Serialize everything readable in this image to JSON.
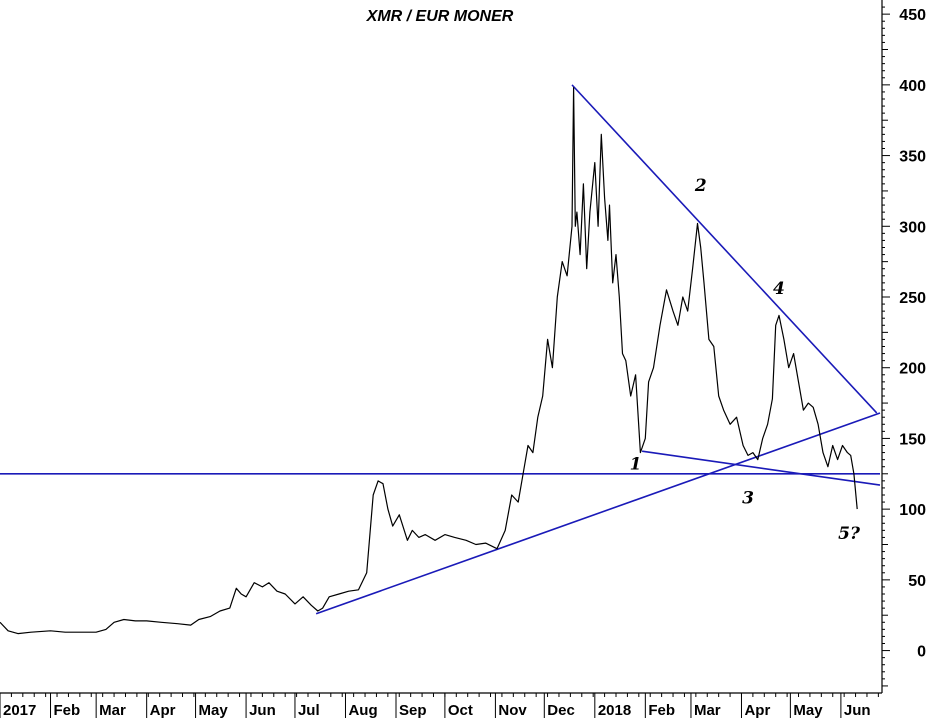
{
  "chart_data": {
    "type": "line",
    "title": "XMR / EUR MONER",
    "xlabel": "",
    "ylabel": "",
    "ylim": [
      -30,
      460
    ],
    "xlim": [
      "2017-01-01",
      "2018-06-25"
    ],
    "y_axis_position": "right",
    "y_ticks": [
      0,
      50,
      100,
      150,
      200,
      250,
      300,
      350,
      400,
      450
    ],
    "y_tick_labels": [
      "0",
      "50",
      "100",
      "150",
      "200",
      "250",
      "300",
      "350",
      "400",
      "450"
    ],
    "x_tick_labels": [
      "2017",
      "Feb",
      "Mar",
      "Apr",
      "May",
      "Jun",
      "Jul",
      "Aug",
      "Sep",
      "Oct",
      "Nov",
      "Dec",
      "2018",
      "Feb",
      "Mar",
      "Apr",
      "May",
      "Jun"
    ],
    "x_tick_dates": [
      "2017-01-01",
      "2017-02-01",
      "2017-03-01",
      "2017-04-01",
      "2017-05-01",
      "2017-06-01",
      "2017-07-01",
      "2017-08-01",
      "2017-09-01",
      "2017-10-01",
      "2017-11-01",
      "2017-12-01",
      "2018-01-01",
      "2018-02-01",
      "2018-03-01",
      "2018-04-01",
      "2018-05-01",
      "2018-06-01"
    ],
    "grid": false,
    "series": [
      {
        "color": "#000000",
        "x": [
          "2017-01-01",
          "2017-01-06",
          "2017-01-12",
          "2017-01-20",
          "2017-02-01",
          "2017-02-10",
          "2017-02-20",
          "2017-03-01",
          "2017-03-07",
          "2017-03-12",
          "2017-03-18",
          "2017-03-25",
          "2017-04-01",
          "2017-04-10",
          "2017-04-20",
          "2017-04-28",
          "2017-05-03",
          "2017-05-10",
          "2017-05-16",
          "2017-05-22",
          "2017-05-26",
          "2017-05-29",
          "2017-06-01",
          "2017-06-06",
          "2017-06-11",
          "2017-06-15",
          "2017-06-20",
          "2017-06-25",
          "2017-07-01",
          "2017-07-06",
          "2017-07-11",
          "2017-07-15",
          "2017-07-18",
          "2017-07-22",
          "2017-07-28",
          "2017-08-03",
          "2017-08-09",
          "2017-08-14",
          "2017-08-18",
          "2017-08-21",
          "2017-08-24",
          "2017-08-27",
          "2017-08-30",
          "2017-09-03",
          "2017-09-08",
          "2017-09-11",
          "2017-09-15",
          "2017-09-19",
          "2017-09-25",
          "2017-10-01",
          "2017-10-07",
          "2017-10-14",
          "2017-10-20",
          "2017-10-26",
          "2017-11-02",
          "2017-11-07",
          "2017-11-11",
          "2017-11-15",
          "2017-11-18",
          "2017-11-21",
          "2017-11-24",
          "2017-11-27",
          "2017-11-30",
          "2017-12-03",
          "2017-12-06",
          "2017-12-09",
          "2017-12-12",
          "2017-12-15",
          "2017-12-18",
          "2017-12-19",
          "2017-12-20",
          "2017-12-21",
          "2017-12-23",
          "2017-12-25",
          "2017-12-27",
          "2017-12-29",
          "2018-01-01",
          "2018-01-03",
          "2018-01-05",
          "2018-01-07",
          "2018-01-09",
          "2018-01-10",
          "2018-01-12",
          "2018-01-14",
          "2018-01-16",
          "2018-01-18",
          "2018-01-20",
          "2018-01-23",
          "2018-01-26",
          "2018-01-29",
          "2018-02-01",
          "2018-02-03",
          "2018-02-06",
          "2018-02-10",
          "2018-02-14",
          "2018-02-18",
          "2018-02-21",
          "2018-02-24",
          "2018-02-27",
          "2018-03-02",
          "2018-03-05",
          "2018-03-07",
          "2018-03-09",
          "2018-03-12",
          "2018-03-15",
          "2018-03-18",
          "2018-03-21",
          "2018-03-25",
          "2018-03-29",
          "2018-04-02",
          "2018-04-05",
          "2018-04-08",
          "2018-04-11",
          "2018-04-14",
          "2018-04-17",
          "2018-04-20",
          "2018-04-22",
          "2018-04-24",
          "2018-04-27",
          "2018-04-30",
          "2018-05-03",
          "2018-05-06",
          "2018-05-09",
          "2018-05-12",
          "2018-05-15",
          "2018-05-18",
          "2018-05-21",
          "2018-05-24",
          "2018-05-27",
          "2018-05-30",
          "2018-06-02",
          "2018-06-05",
          "2018-06-07",
          "2018-06-09",
          "2018-06-11"
        ],
        "values": [
          20,
          14,
          12,
          13,
          14,
          13,
          13,
          13,
          15,
          20,
          22,
          21,
          21,
          20,
          19,
          18,
          22,
          24,
          28,
          30,
          44,
          40,
          38,
          48,
          45,
          48,
          42,
          40,
          33,
          38,
          32,
          28,
          30,
          38,
          40,
          42,
          43,
          55,
          110,
          120,
          118,
          100,
          88,
          96,
          78,
          85,
          80,
          82,
          78,
          82,
          80,
          78,
          75,
          76,
          72,
          85,
          110,
          105,
          125,
          145,
          140,
          165,
          180,
          220,
          200,
          250,
          275,
          265,
          300,
          398,
          300,
          310,
          280,
          330,
          270,
          310,
          345,
          300,
          365,
          320,
          290,
          315,
          260,
          280,
          250,
          210,
          205,
          180,
          195,
          140,
          150,
          190,
          200,
          230,
          255,
          240,
          230,
          250,
          240,
          270,
          302,
          285,
          260,
          220,
          215,
          180,
          170,
          160,
          165,
          145,
          138,
          140,
          135,
          150,
          160,
          178,
          230,
          237,
          220,
          200,
          210,
          190,
          170,
          175,
          172,
          160,
          140,
          130,
          145,
          135,
          145,
          140,
          138,
          125,
          100
        ]
      }
    ],
    "trendlines": [
      {
        "color": "#1a1ab8",
        "x": [
          "2017-12-18",
          "2018-06-23"
        ],
        "values": [
          400,
          168
        ]
      },
      {
        "color": "#1a1ab8",
        "x": [
          "2017-07-14",
          "2018-06-25"
        ],
        "values": [
          26,
          168
        ]
      },
      {
        "color": "#1a1ab8",
        "x": [
          "2018-01-30",
          "2018-06-25"
        ],
        "values": [
          141,
          117
        ]
      },
      {
        "color": "#1a1ab8",
        "x": [
          "2017-01-01",
          "2018-06-25"
        ],
        "values": [
          125,
          125
        ]
      }
    ],
    "annotations": [
      {
        "text": "1",
        "x": "2018-01-26",
        "y": 128
      },
      {
        "text": "2",
        "x": "2018-03-07",
        "y": 325
      },
      {
        "text": "3",
        "x": "2018-04-05",
        "y": 104
      },
      {
        "text": "4",
        "x": "2018-04-24",
        "y": 252
      },
      {
        "text": "5?",
        "x": "2018-06-06",
        "y": 79
      }
    ]
  }
}
